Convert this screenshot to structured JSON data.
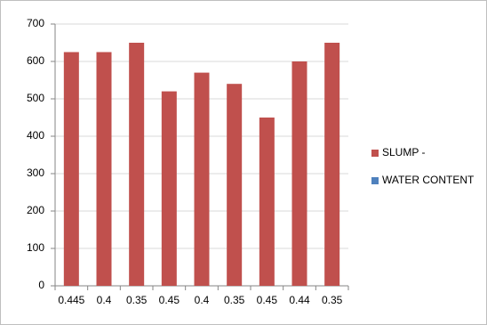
{
  "chart_data": {
    "type": "bar",
    "categories": [
      "0.445",
      "0.4",
      "0.35",
      "0.45",
      "0.4",
      "0.35",
      "0.45",
      "0.44",
      "0.35"
    ],
    "series": [
      {
        "name": "SLUMP -",
        "color": "#c0504d",
        "values": [
          625,
          625,
          650,
          520,
          570,
          540,
          450,
          600,
          650
        ]
      },
      {
        "name": "WATER CONTENT",
        "color": "#4f81bd",
        "values": [
          null,
          null,
          null,
          null,
          null,
          null,
          null,
          null,
          null
        ]
      }
    ],
    "ylim": [
      0,
      700
    ],
    "yticks": [
      0,
      100,
      200,
      300,
      400,
      500,
      600,
      700
    ],
    "grid": true,
    "legend": "right"
  }
}
